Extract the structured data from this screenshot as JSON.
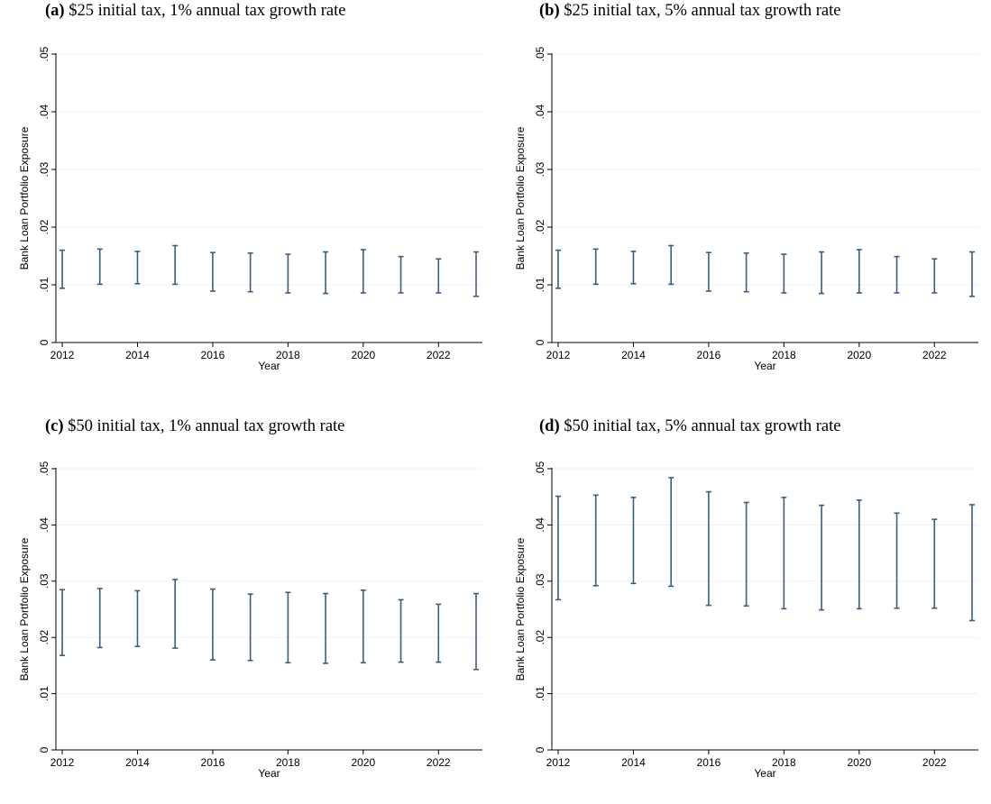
{
  "chart_data": [
    {
      "type": "errorbar",
      "panel_label": "(a)",
      "title": "$25 initial tax, 1% annual tax growth rate",
      "xlabel": "Year",
      "ylabel": "Bank Loan Portfolio Exposure",
      "xticks": [
        "2012",
        "2014",
        "2016",
        "2018",
        "2020",
        "2022"
      ],
      "yticks": [
        "0",
        ".01",
        ".02",
        ".03",
        ".04",
        ".05"
      ],
      "ylim": [
        0,
        0.05
      ],
      "xlim": [
        2012,
        2023
      ],
      "grid": true,
      "color": "#3b5e80",
      "years": [
        2012,
        2013,
        2014,
        2015,
        2016,
        2017,
        2018,
        2019,
        2020,
        2021,
        2022,
        2023
      ],
      "lower": [
        0.0094,
        0.0101,
        0.0102,
        0.0101,
        0.0089,
        0.0088,
        0.0086,
        0.0085,
        0.0086,
        0.0086,
        0.0086,
        0.008
      ],
      "upper": [
        0.016,
        0.0162,
        0.0158,
        0.0168,
        0.0156,
        0.0155,
        0.0153,
        0.0157,
        0.0161,
        0.0149,
        0.0145,
        0.0157
      ]
    },
    {
      "type": "errorbar",
      "panel_label": "(b)",
      "title": "$25 initial tax, 5% annual tax growth rate",
      "xlabel": "Year",
      "ylabel": "Bank Loan Portfolio Exposure",
      "xticks": [
        "2012",
        "2014",
        "2016",
        "2018",
        "2020",
        "2022"
      ],
      "yticks": [
        "0",
        ".01",
        ".02",
        ".03",
        ".04",
        ".05"
      ],
      "ylim": [
        0,
        0.05
      ],
      "xlim": [
        2012,
        2023
      ],
      "grid": true,
      "color": "#3b5e80",
      "years": [
        2012,
        2013,
        2014,
        2015,
        2016,
        2017,
        2018,
        2019,
        2020,
        2021,
        2022,
        2023
      ],
      "lower": [
        0.0094,
        0.0101,
        0.0102,
        0.0101,
        0.0089,
        0.0088,
        0.0086,
        0.0085,
        0.0086,
        0.0086,
        0.0086,
        0.008
      ],
      "upper": [
        0.016,
        0.0162,
        0.0158,
        0.0168,
        0.0156,
        0.0155,
        0.0153,
        0.0157,
        0.0161,
        0.0149,
        0.0145,
        0.0157
      ]
    },
    {
      "type": "errorbar",
      "panel_label": "(c)",
      "title": "$50 initial tax, 1% annual tax growth rate",
      "xlabel": "Year",
      "ylabel": "Bank Loan Portfolio Exposure",
      "xticks": [
        "2012",
        "2014",
        "2016",
        "2018",
        "2020",
        "2022"
      ],
      "yticks": [
        "0",
        ".01",
        ".02",
        ".03",
        ".04",
        ".05"
      ],
      "ylim": [
        0,
        0.05
      ],
      "xlim": [
        2012,
        2023
      ],
      "grid": true,
      "color": "#3b5e80",
      "years": [
        2012,
        2013,
        2014,
        2015,
        2016,
        2017,
        2018,
        2019,
        2020,
        2021,
        2022,
        2023
      ],
      "lower": [
        0.0168,
        0.0182,
        0.0184,
        0.0181,
        0.016,
        0.0159,
        0.0155,
        0.0154,
        0.0155,
        0.0156,
        0.0156,
        0.0143
      ],
      "upper": [
        0.0285,
        0.0287,
        0.0283,
        0.0303,
        0.0286,
        0.0277,
        0.028,
        0.0278,
        0.0284,
        0.0267,
        0.0259,
        0.0278
      ]
    },
    {
      "type": "errorbar",
      "panel_label": "(d)",
      "title": "$50 initial tax, 5% annual tax growth rate",
      "xlabel": "Year",
      "ylabel": "Bank Loan Portfolio Exposure",
      "xticks": [
        "2012",
        "2014",
        "2016",
        "2018",
        "2020",
        "2022"
      ],
      "yticks": [
        "0",
        ".01",
        ".02",
        ".03",
        ".04",
        ".05"
      ],
      "ylim": [
        0,
        0.05
      ],
      "xlim": [
        2012,
        2023
      ],
      "grid": true,
      "color": "#3b5e80",
      "years": [
        2012,
        2013,
        2014,
        2015,
        2016,
        2017,
        2018,
        2019,
        2020,
        2021,
        2022,
        2023
      ],
      "lower": [
        0.0267,
        0.0292,
        0.0296,
        0.0291,
        0.0257,
        0.0256,
        0.0251,
        0.0249,
        0.0251,
        0.0252,
        0.0252,
        0.023
      ],
      "upper": [
        0.0451,
        0.0453,
        0.0449,
        0.0484,
        0.0459,
        0.044,
        0.0449,
        0.0435,
        0.0444,
        0.0421,
        0.041,
        0.0436
      ]
    }
  ]
}
